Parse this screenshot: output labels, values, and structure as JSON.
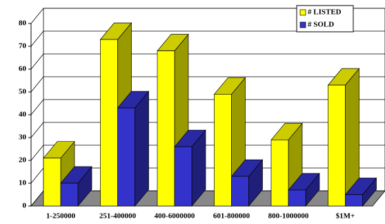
{
  "chart_data": {
    "type": "bar3d",
    "categories": [
      "1-250000",
      "251-400000",
      "400-6000000",
      "601-800000",
      "800-1000000",
      "$1M+"
    ],
    "series": [
      {
        "name": "# LISTED",
        "color": "#ffff00",
        "values": [
          21,
          73,
          68,
          49,
          29,
          53
        ]
      },
      {
        "name": "# SOLD",
        "color": "#3333cc",
        "values": [
          10,
          43,
          26,
          13,
          7,
          5
        ]
      }
    ],
    "ylim": [
      0,
      80
    ],
    "yticks": [
      0,
      10,
      20,
      30,
      40,
      50,
      60,
      70,
      80
    ],
    "grid": true,
    "legend": "top-right"
  }
}
